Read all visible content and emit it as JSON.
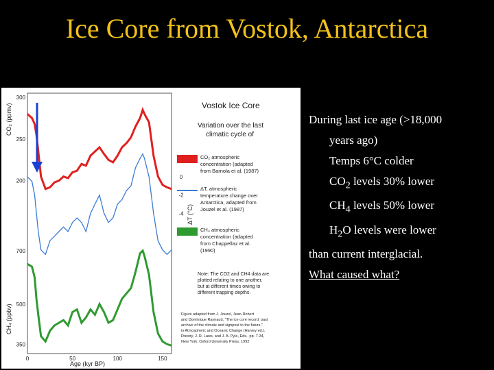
{
  "slide": {
    "title": "Ice Core from Vostok, Antarctica"
  },
  "figure": {
    "title": "Vostok Ice Core",
    "subtitle_line1": "Variation over the last",
    "subtitle_line2": "climatic cycle of",
    "legend": {
      "co2_line1": "CO₂ atmospheric",
      "co2_line2": "concentration (adapted",
      "co2_line3": "from Barnola et al. (1987)",
      "temp_line1": "ΔT, atmospheric",
      "temp_line2": "temperature change over",
      "temp_line3": "Antarctica, adapted from",
      "temp_line4": "Jouzel et al. (1987)",
      "ch4_line1": "CH₄ atmospheric",
      "ch4_line2": "concentration (adapted",
      "ch4_line3": "from Chappellaz et al.",
      "ch4_line4": "(1990)"
    },
    "note_line1": "Note: The CO2 and CH4 data are",
    "note_line2": "plotted relating to one another,",
    "note_line3": "but at different times owing to",
    "note_line4": "different trapping depths.",
    "credit_line1": "Figure adapted from J. Jouzel, Jean-Robert",
    "credit_line2": "and Dominique Raynaud, \"The ice core record: past",
    "credit_line3": "archive of the climate and signpost to the future,\"",
    "credit_line4": "in Atmospheric and Oceanic Change (Harvey ed.),",
    "credit_line5": "Drewry, J. R. Laws, and J. A. Pyle, Eds., pp. 7-34,",
    "credit_line6": "New York: Oxford University Press, 1992"
  },
  "chart_data": {
    "type": "line",
    "x_axis": {
      "label": "Age (kyr BP)",
      "ticks": [
        "0",
        "50",
        "100",
        "150"
      ],
      "range": [
        0,
        160
      ],
      "reversed": false
    },
    "y_axes": {
      "co2": {
        "label": "CO₂ (ppmv)",
        "ticks": [
          "300",
          "250",
          "200"
        ],
        "range": [
          180,
          300
        ]
      },
      "temp": {
        "label": "ΔT (°C)",
        "ticks": [
          "2",
          "0",
          "-2",
          "-4",
          "-6"
        ],
        "range": [
          -9,
          3
        ]
      },
      "ch4": {
        "label": "CH₄ (ppbv)",
        "ticks": [
          "700",
          "500",
          "350"
        ],
        "range": [
          320,
          720
        ]
      }
    },
    "series": [
      {
        "name": "CO₂",
        "color": "#e0201f",
        "x": [
          0,
          5,
          8,
          10,
          12,
          15,
          20,
          25,
          30,
          35,
          40,
          45,
          50,
          55,
          60,
          65,
          70,
          75,
          80,
          85,
          90,
          95,
          100,
          105,
          110,
          115,
          120,
          125,
          128,
          130,
          135,
          140,
          145,
          150,
          155,
          160
        ],
        "values": [
          280,
          275,
          268,
          255,
          235,
          205,
          190,
          192,
          198,
          200,
          205,
          203,
          210,
          212,
          220,
          218,
          230,
          235,
          240,
          232,
          225,
          222,
          230,
          240,
          245,
          252,
          265,
          275,
          285,
          280,
          270,
          230,
          205,
          195,
          192,
          190
        ]
      },
      {
        "name": "ΔT",
        "color": "#3a7bd5",
        "x": [
          0,
          5,
          8,
          10,
          12,
          15,
          20,
          25,
          30,
          35,
          40,
          45,
          50,
          55,
          60,
          65,
          70,
          75,
          80,
          85,
          90,
          95,
          100,
          105,
          110,
          115,
          120,
          125,
          128,
          130,
          135,
          140,
          145,
          150,
          155,
          160
        ],
        "values": [
          0,
          -0.5,
          -2,
          -4,
          -6,
          -8,
          -8.5,
          -7,
          -6.5,
          -6,
          -5.5,
          -6,
          -5,
          -4.5,
          -5,
          -6,
          -4,
          -3,
          -2,
          -4,
          -5,
          -4.5,
          -3,
          -2.5,
          -1.5,
          -1,
          1,
          2,
          2.5,
          2,
          0,
          -4,
          -7,
          -8,
          -8.5,
          -8
        ]
      },
      {
        "name": "CH₄",
        "color": "#2f9a2f",
        "x": [
          0,
          5,
          8,
          10,
          12,
          15,
          20,
          25,
          30,
          35,
          40,
          45,
          50,
          55,
          60,
          65,
          70,
          75,
          80,
          85,
          90,
          95,
          100,
          105,
          110,
          115,
          120,
          125,
          128,
          130,
          135,
          140,
          145,
          150,
          155,
          160
        ],
        "values": [
          650,
          640,
          600,
          520,
          460,
          380,
          360,
          400,
          420,
          430,
          440,
          420,
          470,
          480,
          430,
          450,
          480,
          460,
          500,
          470,
          430,
          440,
          480,
          520,
          540,
          560,
          620,
          690,
          700,
          680,
          610,
          470,
          390,
          360,
          350,
          345
        ]
      }
    ]
  },
  "notes": {
    "line1": "During last ice age (>18,000",
    "line2": "years ago)",
    "line3": "Temps 6°C colder",
    "line4a": "CO",
    "line4sub": "2",
    "line4b": " levels 30% lower",
    "line5a": "CH",
    "line5sub": "4",
    "line5b": " levels 50% lower",
    "line6a": "H",
    "line6sub": "2",
    "line6b": "O levels were lower",
    "line7": "than current interglacial.",
    "line8": "What caused what?"
  },
  "colors": {
    "title": "#f2c21b",
    "background": "#000000",
    "arrow": "#1b3fd6",
    "co2": "#e0201f",
    "temp": "#3a7bd5",
    "ch4": "#2f9a2f"
  }
}
